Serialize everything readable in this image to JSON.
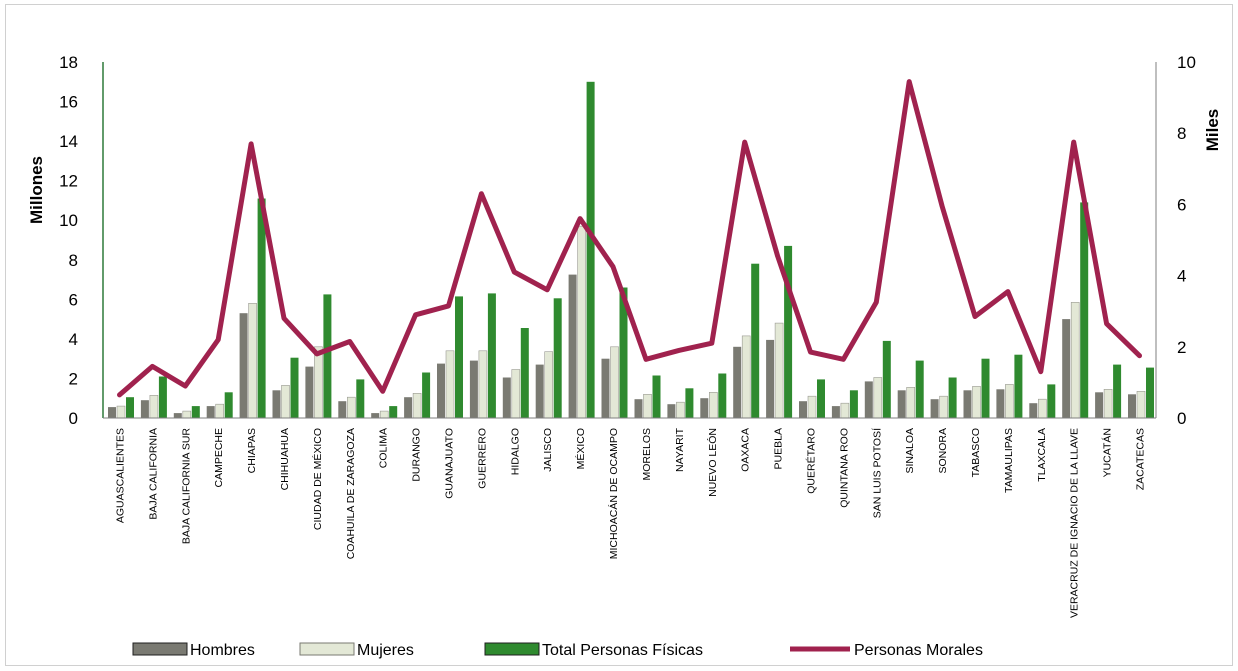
{
  "chart_data": {
    "type": "bar",
    "title": "",
    "y_left_label": "Millones",
    "y_right_label": "Miles",
    "y_left_lim": [
      0,
      18
    ],
    "y_left_ticks": [
      0,
      2,
      4,
      6,
      8,
      10,
      12,
      14,
      16,
      18
    ],
    "y_right_lim": [
      0,
      10
    ],
    "y_right_ticks": [
      0,
      2,
      4,
      6,
      8,
      10
    ],
    "grid": false,
    "legend_position": "bottom",
    "categories": [
      "AGUASCALIENTES",
      "BAJA CALIFORNIA",
      "BAJA CALIFORNIA SUR",
      "CAMPECHE",
      "CHIAPAS",
      "CHIHUAHUA",
      "CIUDAD DE MÉXICO",
      "COAHUILA DE ZARAGOZA",
      "COLIMA",
      "DURANGO",
      "GUANAJUATO",
      "GUERRERO",
      "HIDALGO",
      "JALISCO",
      "MÉXICO",
      "MICHOACÁN DE OCAMPO",
      "MORELOS",
      "NAYARIT",
      "NUEVO LEÓN",
      "OAXACA",
      "PUEBLA",
      "QUERÉTARO",
      "QUINTANA ROO",
      "SAN LUIS POTOSÍ",
      "SINALOA",
      "SONORA",
      "TABASCO",
      "TAMAULIPAS",
      "TLAXCALA",
      "VERACRUZ DE IGNACIO DE LA LLAVE",
      "YUCATÁN",
      "ZACATECAS"
    ],
    "series": [
      {
        "name": "Hombres",
        "axis": "left",
        "kind": "bar",
        "color": "#7a7a72",
        "values": [
          0.55,
          0.9,
          0.25,
          0.6,
          5.3,
          1.4,
          2.6,
          0.85,
          0.25,
          1.05,
          2.75,
          2.9,
          2.05,
          2.7,
          7.25,
          3.0,
          0.95,
          0.7,
          1.0,
          3.6,
          3.95,
          0.85,
          0.6,
          1.85,
          1.4,
          0.95,
          1.4,
          1.45,
          0.75,
          5.0,
          1.3,
          1.2
        ]
      },
      {
        "name": "Mujeres",
        "axis": "left",
        "kind": "bar",
        "color": "#e3e8d6",
        "values": [
          0.6,
          1.15,
          0.35,
          0.7,
          5.8,
          1.65,
          3.6,
          1.05,
          0.35,
          1.25,
          3.4,
          3.4,
          2.45,
          3.35,
          9.7,
          3.6,
          1.2,
          0.8,
          1.3,
          4.15,
          4.8,
          1.1,
          0.75,
          2.05,
          1.55,
          1.1,
          1.6,
          1.7,
          0.95,
          5.85,
          1.45,
          1.35
        ]
      },
      {
        "name": "Total Personas Físicas",
        "axis": "left",
        "kind": "bar",
        "color": "#2f8a2f",
        "values": [
          1.05,
          2.1,
          0.6,
          1.3,
          11.1,
          3.05,
          6.25,
          1.95,
          0.6,
          2.3,
          6.15,
          6.3,
          4.55,
          6.05,
          17.0,
          6.6,
          2.15,
          1.5,
          2.25,
          7.8,
          8.7,
          1.95,
          1.4,
          3.9,
          2.9,
          2.05,
          3.0,
          3.2,
          1.7,
          10.9,
          2.7,
          2.55
        ]
      },
      {
        "name": "Personas Morales",
        "axis": "right",
        "kind": "line",
        "color": "#a0224e",
        "values": [
          0.65,
          1.45,
          0.9,
          2.2,
          7.7,
          2.8,
          1.8,
          2.15,
          0.75,
          2.9,
          3.15,
          6.3,
          4.1,
          3.6,
          5.6,
          4.25,
          1.65,
          1.9,
          2.1,
          7.75,
          4.55,
          1.85,
          1.65,
          3.25,
          9.45,
          5.95,
          2.85,
          3.55,
          1.3,
          7.75,
          2.65,
          1.75
        ]
      }
    ]
  }
}
